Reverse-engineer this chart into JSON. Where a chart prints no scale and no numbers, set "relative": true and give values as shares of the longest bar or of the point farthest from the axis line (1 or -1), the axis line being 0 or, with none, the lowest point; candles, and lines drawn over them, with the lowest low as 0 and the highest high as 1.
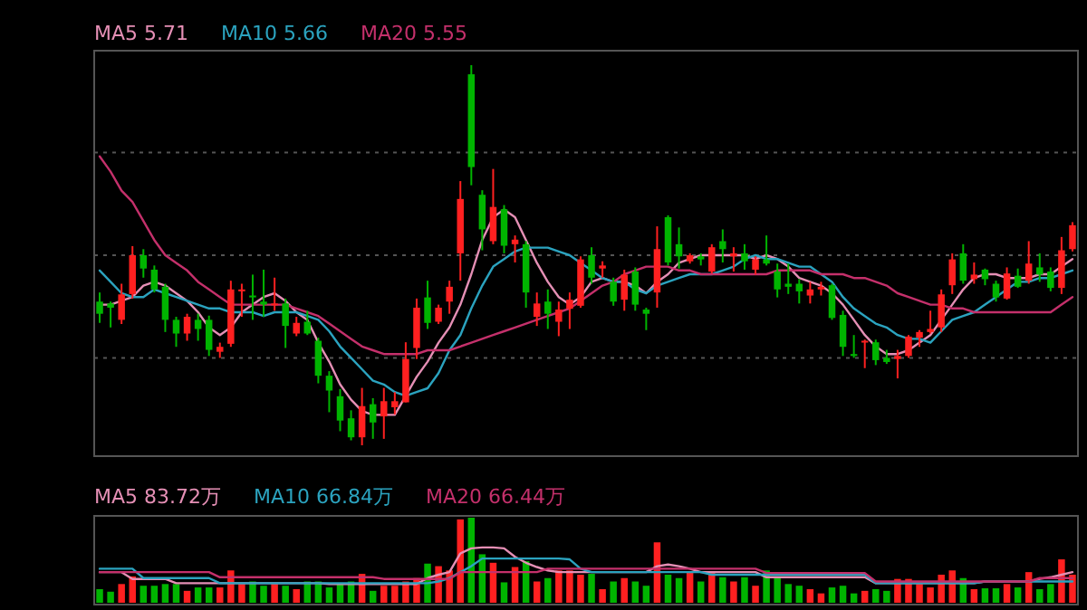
{
  "chart_data": [
    {
      "type": "candlestick",
      "relative": true,
      "legend": "top left",
      "categories": [
        null,
        null,
        null,
        null,
        null,
        null,
        null,
        null,
        null,
        null,
        null,
        null,
        null,
        null,
        null,
        null,
        null,
        null,
        null,
        null,
        null,
        null,
        null,
        null,
        null,
        null,
        null,
        null,
        null,
        null,
        null,
        null,
        null,
        null,
        null,
        null,
        null,
        null,
        null,
        null,
        null,
        null,
        null,
        null,
        null,
        null,
        null,
        null,
        null,
        null,
        null,
        null,
        null,
        null,
        null,
        null,
        null,
        null,
        null,
        null,
        null,
        null,
        null,
        null,
        null,
        null,
        null,
        null,
        null,
        null,
        null,
        null,
        null,
        null,
        null,
        null,
        null,
        null,
        null,
        null,
        null,
        null,
        null,
        null,
        null,
        null,
        null,
        null,
        null,
        null
      ],
      "ohlc": [
        [
          0.378,
          0.402,
          0.322,
          0.346
        ],
        [
          0.373,
          0.378,
          0.31,
          0.362
        ],
        [
          0.33,
          0.425,
          0.319,
          0.397
        ],
        [
          0.398,
          0.524,
          0.386,
          0.5
        ],
        [
          0.5,
          0.516,
          0.441,
          0.465
        ],
        [
          0.462,
          0.473,
          0.402,
          0.41
        ],
        [
          0.417,
          0.425,
          0.298,
          0.33
        ],
        [
          0.33,
          0.338,
          0.259,
          0.294
        ],
        [
          0.294,
          0.346,
          0.275,
          0.338
        ],
        [
          0.33,
          0.346,
          0.275,
          0.306
        ],
        [
          0.33,
          0.341,
          0.235,
          0.251
        ],
        [
          0.246,
          0.27,
          0.23,
          0.259
        ],
        [
          0.267,
          0.433,
          0.259,
          0.41
        ],
        [
          0.405,
          0.425,
          0.338,
          0.41
        ],
        [
          0.394,
          0.449,
          0.33,
          0.389
        ],
        [
          0.378,
          0.462,
          0.338,
          0.37
        ],
        [
          0.37,
          0.441,
          0.354,
          0.373
        ],
        [
          0.373,
          0.386,
          0.256,
          0.314
        ],
        [
          0.294,
          0.338,
          0.287,
          0.322
        ],
        [
          0.325,
          0.354,
          0.29,
          0.294
        ],
        [
          0.275,
          0.283,
          0.163,
          0.183
        ],
        [
          0.183,
          0.195,
          0.087,
          0.144
        ],
        [
          0.129,
          0.148,
          0.037,
          0.065
        ],
        [
          0.071,
          0.092,
          0.013,
          0.021
        ],
        [
          0.021,
          0.151,
          0.0,
          0.103
        ],
        [
          0.108,
          0.124,
          0.017,
          0.06
        ],
        [
          0.076,
          0.151,
          0.017,
          0.116
        ],
        [
          0.1,
          0.14,
          0.081,
          0.116
        ],
        [
          0.113,
          0.271,
          0.113,
          0.227
        ],
        [
          0.256,
          0.386,
          0.227,
          0.362
        ],
        [
          0.389,
          0.433,
          0.306,
          0.322
        ],
        [
          0.325,
          0.37,
          0.319,
          0.362
        ],
        [
          0.378,
          0.433,
          0.346,
          0.417
        ],
        [
          0.505,
          0.695,
          0.433,
          0.648
        ],
        [
          0.976,
          1.0,
          0.684,
          0.732
        ],
        [
          0.659,
          0.671,
          0.513,
          0.568
        ],
        [
          0.537,
          0.727,
          0.529,
          0.627
        ],
        [
          0.621,
          0.632,
          0.505,
          0.525
        ],
        [
          0.529,
          0.552,
          0.481,
          0.541
        ],
        [
          0.529,
          0.537,
          0.362,
          0.402
        ],
        [
          0.338,
          0.402,
          0.314,
          0.373
        ],
        [
          0.378,
          0.41,
          0.306,
          0.346
        ],
        [
          0.325,
          0.378,
          0.287,
          0.357
        ],
        [
          0.359,
          0.402,
          0.306,
          0.383
        ],
        [
          0.367,
          0.497,
          0.362,
          0.489
        ],
        [
          0.5,
          0.521,
          0.425,
          0.441
        ],
        [
          0.465,
          0.484,
          0.441,
          0.473
        ],
        [
          0.43,
          0.441,
          0.367,
          0.378
        ],
        [
          0.383,
          0.462,
          0.354,
          0.449
        ],
        [
          0.457,
          0.468,
          0.354,
          0.37
        ],
        [
          0.357,
          0.362,
          0.303,
          0.346
        ],
        [
          0.402,
          0.576,
          0.362,
          0.516
        ],
        [
          0.6,
          0.605,
          0.473,
          0.481
        ],
        [
          0.529,
          0.573,
          0.465,
          0.497
        ],
        [
          0.484,
          0.505,
          0.478,
          0.5
        ],
        [
          0.497,
          0.505,
          0.473,
          0.489
        ],
        [
          0.457,
          0.529,
          0.452,
          0.521
        ],
        [
          0.537,
          0.568,
          0.481,
          0.516
        ],
        [
          0.497,
          0.521,
          0.457,
          0.505
        ],
        [
          0.505,
          0.529,
          0.462,
          0.484
        ],
        [
          0.462,
          0.497,
          0.449,
          0.489
        ],
        [
          0.489,
          0.552,
          0.473,
          0.478
        ],
        [
          0.457,
          0.478,
          0.389,
          0.41
        ],
        [
          0.425,
          0.478,
          0.398,
          0.417
        ],
        [
          0.425,
          0.437,
          0.373,
          0.405
        ],
        [
          0.394,
          0.43,
          0.373,
          0.41
        ],
        [
          0.41,
          0.43,
          0.394,
          0.417
        ],
        [
          0.421,
          0.425,
          0.33,
          0.335
        ],
        [
          0.343,
          0.354,
          0.235,
          0.259
        ],
        [
          0.24,
          0.29,
          0.23,
          0.235
        ],
        [
          0.271,
          0.278,
          0.203,
          0.275
        ],
        [
          0.271,
          0.278,
          0.211,
          0.224
        ],
        [
          0.23,
          0.251,
          0.214,
          0.219
        ],
        [
          0.227,
          0.251,
          0.176,
          0.235
        ],
        [
          0.235,
          0.29,
          0.23,
          0.286
        ],
        [
          0.283,
          0.303,
          0.259,
          0.298
        ],
        [
          0.298,
          0.354,
          0.294,
          0.306
        ],
        [
          0.31,
          0.41,
          0.298,
          0.397
        ],
        [
          0.421,
          0.505,
          0.398,
          0.489
        ],
        [
          0.505,
          0.529,
          0.425,
          0.433
        ],
        [
          0.437,
          0.481,
          0.425,
          0.449
        ],
        [
          0.462,
          0.465,
          0.421,
          0.437
        ],
        [
          0.425,
          0.433,
          0.378,
          0.389
        ],
        [
          0.386,
          0.468,
          0.383,
          0.452
        ],
        [
          0.446,
          0.465,
          0.414,
          0.417
        ],
        [
          0.433,
          0.537,
          0.425,
          0.478
        ],
        [
          0.468,
          0.505,
          0.43,
          0.449
        ],
        [
          0.457,
          0.468,
          0.405,
          0.414
        ],
        [
          0.414,
          0.548,
          0.398,
          0.513
        ],
        [
          0.516,
          0.587,
          0.51,
          0.579
        ]
      ],
      "series": [
        {
          "type": "line",
          "name": "MA5 5.71",
          "color": "#e58fb5",
          "values": [
            0.37,
            0.37,
            0.38,
            0.39,
            0.42,
            0.43,
            0.42,
            0.4,
            0.38,
            0.35,
            0.31,
            0.29,
            0.31,
            0.35,
            0.37,
            0.39,
            0.4,
            0.38,
            0.35,
            0.33,
            0.27,
            0.22,
            0.16,
            0.12,
            0.09,
            0.08,
            0.08,
            0.08,
            0.13,
            0.18,
            0.22,
            0.27,
            0.31,
            0.37,
            0.45,
            0.54,
            0.6,
            0.62,
            0.6,
            0.54,
            0.48,
            0.43,
            0.39,
            0.37,
            0.39,
            0.43,
            0.44,
            0.43,
            0.43,
            0.42,
            0.4,
            0.43,
            0.45,
            0.48,
            0.49,
            0.5,
            0.5,
            0.5,
            0.5,
            0.5,
            0.49,
            0.5,
            0.49,
            0.47,
            0.44,
            0.43,
            0.42,
            0.4,
            0.37,
            0.33,
            0.29,
            0.26,
            0.24,
            0.24,
            0.25,
            0.27,
            0.29,
            0.33,
            0.37,
            0.41,
            0.44,
            0.45,
            0.45,
            0.44,
            0.44,
            0.44,
            0.45,
            0.45,
            0.47,
            0.49
          ]
        },
        {
          "type": "line",
          "name": "MA10 5.66",
          "color": "#2ba3bf",
          "values": [
            0.46,
            0.43,
            0.4,
            0.39,
            0.39,
            0.41,
            0.4,
            0.39,
            0.38,
            0.37,
            0.36,
            0.36,
            0.35,
            0.35,
            0.35,
            0.34,
            0.35,
            0.35,
            0.35,
            0.34,
            0.33,
            0.3,
            0.26,
            0.23,
            0.2,
            0.17,
            0.16,
            0.14,
            0.13,
            0.14,
            0.15,
            0.19,
            0.25,
            0.29,
            0.36,
            0.42,
            0.47,
            0.49,
            0.51,
            0.52,
            0.52,
            0.52,
            0.51,
            0.5,
            0.48,
            0.46,
            0.44,
            0.43,
            0.43,
            0.41,
            0.4,
            0.42,
            0.43,
            0.44,
            0.45,
            0.45,
            0.45,
            0.46,
            0.47,
            0.49,
            0.5,
            0.49,
            0.49,
            0.48,
            0.47,
            0.47,
            0.45,
            0.43,
            0.39,
            0.36,
            0.34,
            0.32,
            0.31,
            0.29,
            0.28,
            0.28,
            0.27,
            0.3,
            0.33,
            0.34,
            0.35,
            0.37,
            0.39,
            0.41,
            0.43,
            0.43,
            0.44,
            0.44,
            0.45,
            0.46
          ]
        },
        {
          "type": "line",
          "name": "MA20 5.55",
          "color": "#c4306b",
          "values": [
            0.76,
            0.72,
            0.67,
            0.64,
            0.59,
            0.54,
            0.5,
            0.48,
            0.46,
            0.43,
            0.41,
            0.39,
            0.37,
            0.37,
            0.37,
            0.37,
            0.37,
            0.37,
            0.36,
            0.35,
            0.34,
            0.32,
            0.3,
            0.28,
            0.26,
            0.25,
            0.24,
            0.24,
            0.24,
            0.24,
            0.25,
            0.25,
            0.25,
            0.26,
            0.27,
            0.28,
            0.29,
            0.3,
            0.31,
            0.32,
            0.33,
            0.34,
            0.35,
            0.36,
            0.38,
            0.4,
            0.42,
            0.43,
            0.45,
            0.46,
            0.47,
            0.47,
            0.47,
            0.46,
            0.46,
            0.45,
            0.45,
            0.45,
            0.45,
            0.45,
            0.45,
            0.45,
            0.46,
            0.46,
            0.46,
            0.46,
            0.45,
            0.45,
            0.45,
            0.44,
            0.44,
            0.43,
            0.42,
            0.4,
            0.39,
            0.38,
            0.37,
            0.37,
            0.36,
            0.36,
            0.35,
            0.35,
            0.35,
            0.35,
            0.35,
            0.35,
            0.35,
            0.35,
            0.37,
            0.39
          ]
        }
      ],
      "ref_lines": [
        {
          "axis": "y",
          "value": 0.77,
          "color": "#555555",
          "line_style": "dotted"
        },
        {
          "axis": "y",
          "value": 0.5,
          "color": "#555555",
          "line_style": "dotted"
        },
        {
          "axis": "y",
          "value": 0.23,
          "color": "#555555",
          "line_style": "dotted"
        }
      ]
    },
    {
      "type": "bar",
      "relative": true,
      "legend": "top left",
      "categories": [
        null,
        null,
        null,
        null,
        null,
        null,
        null,
        null,
        null,
        null,
        null,
        null,
        null,
        null,
        null,
        null,
        null,
        null,
        null,
        null,
        null,
        null,
        null,
        null,
        null,
        null,
        null,
        null,
        null,
        null,
        null,
        null,
        null,
        null,
        null,
        null,
        null,
        null,
        null,
        null,
        null,
        null,
        null,
        null,
        null,
        null,
        null,
        null,
        null,
        null,
        null,
        null,
        null,
        null,
        null,
        null,
        null,
        null,
        null,
        null,
        null,
        null,
        null,
        null,
        null,
        null,
        null,
        null,
        null,
        null,
        null,
        null,
        null,
        null,
        null,
        null,
        null,
        null,
        null,
        null,
        null,
        null,
        null,
        null,
        null,
        null,
        null,
        null,
        null,
        null
      ],
      "series": [
        {
          "type": "bar",
          "values": [
            0.16,
            0.13,
            0.22,
            0.31,
            0.2,
            0.2,
            0.22,
            0.22,
            0.14,
            0.18,
            0.18,
            0.18,
            0.38,
            0.22,
            0.25,
            0.2,
            0.22,
            0.2,
            0.16,
            0.25,
            0.25,
            0.18,
            0.23,
            0.25,
            0.34,
            0.14,
            0.2,
            0.2,
            0.25,
            0.29,
            0.46,
            0.43,
            0.38,
            0.98,
            1.0,
            0.57,
            0.47,
            0.24,
            0.42,
            0.49,
            0.25,
            0.29,
            0.38,
            0.38,
            0.33,
            0.34,
            0.16,
            0.25,
            0.29,
            0.25,
            0.2,
            0.71,
            0.33,
            0.29,
            0.36,
            0.25,
            0.36,
            0.3,
            0.25,
            0.3,
            0.2,
            0.38,
            0.29,
            0.22,
            0.2,
            0.16,
            0.11,
            0.18,
            0.2,
            0.11,
            0.14,
            0.16,
            0.14,
            0.28,
            0.28,
            0.22,
            0.18,
            0.33,
            0.38,
            0.29,
            0.16,
            0.17,
            0.17,
            0.22,
            0.18,
            0.36,
            0.16,
            0.22,
            0.51,
            0.33
          ],
          "colors": [
            "#00b400",
            "#00b400",
            "#ff2020",
            "#ff2020",
            "#00b400",
            "#00b400",
            "#00b400",
            "#00b400",
            "#ff2020",
            "#00b400",
            "#00b400",
            "#ff2020",
            "#ff2020",
            "#ff2020",
            "#00b400",
            "#00b400",
            "#ff2020",
            "#00b400",
            "#ff2020",
            "#00b400",
            "#00b400",
            "#00b400",
            "#00b400",
            "#00b400",
            "#ff2020",
            "#00b400",
            "#ff2020",
            "#ff2020",
            "#ff2020",
            "#ff2020",
            "#00b400",
            "#ff2020",
            "#ff2020",
            "#ff2020",
            "#00b400",
            "#00b400",
            "#ff2020",
            "#00b400",
            "#ff2020",
            "#00b400",
            "#ff2020",
            "#00b400",
            "#ff2020",
            "#ff2020",
            "#ff2020",
            "#00b400",
            "#ff2020",
            "#00b400",
            "#ff2020",
            "#00b400",
            "#00b400",
            "#ff2020",
            "#00b400",
            "#00b400",
            "#ff2020",
            "#00b400",
            "#ff2020",
            "#00b400",
            "#ff2020",
            "#00b400",
            "#ff2020",
            "#00b400",
            "#00b400",
            "#00b400",
            "#00b400",
            "#ff2020",
            "#ff2020",
            "#00b400",
            "#00b400",
            "#00b400",
            "#ff2020",
            "#00b400",
            "#00b400",
            "#ff2020",
            "#ff2020",
            "#ff2020",
            "#ff2020",
            "#ff2020",
            "#ff2020",
            "#00b400",
            "#ff2020",
            "#00b400",
            "#00b400",
            "#ff2020",
            "#00b400",
            "#ff2020",
            "#00b400",
            "#00b400",
            "#ff2020",
            "#ff2020"
          ]
        },
        {
          "type": "line",
          "name": "MA5 83.72万",
          "color": "#e58fb5",
          "values": [
            0.36,
            0.36,
            0.36,
            0.28,
            0.28,
            0.28,
            0.28,
            0.23,
            0.23,
            0.23,
            0.23,
            0.23,
            0.23,
            0.23,
            0.23,
            0.23,
            0.23,
            0.23,
            0.23,
            0.23,
            0.23,
            0.22,
            0.22,
            0.22,
            0.22,
            0.22,
            0.22,
            0.22,
            0.22,
            0.22,
            0.29,
            0.33,
            0.36,
            0.58,
            0.64,
            0.65,
            0.65,
            0.64,
            0.54,
            0.47,
            0.42,
            0.38,
            0.36,
            0.36,
            0.36,
            0.36,
            0.36,
            0.36,
            0.36,
            0.36,
            0.36,
            0.43,
            0.45,
            0.43,
            0.4,
            0.36,
            0.36,
            0.36,
            0.36,
            0.36,
            0.36,
            0.3,
            0.3,
            0.3,
            0.3,
            0.3,
            0.3,
            0.3,
            0.3,
            0.3,
            0.3,
            0.23,
            0.23,
            0.23,
            0.23,
            0.23,
            0.23,
            0.23,
            0.23,
            0.23,
            0.23,
            0.25,
            0.25,
            0.25,
            0.25,
            0.25,
            0.28,
            0.3,
            0.33,
            0.36
          ]
        },
        {
          "type": "line",
          "name": "MA10 66.84万",
          "color": "#2ba3bf",
          "values": [
            0.4,
            0.4,
            0.4,
            0.4,
            0.29,
            0.29,
            0.29,
            0.29,
            0.29,
            0.29,
            0.29,
            0.23,
            0.23,
            0.23,
            0.23,
            0.23,
            0.23,
            0.23,
            0.23,
            0.23,
            0.23,
            0.23,
            0.23,
            0.23,
            0.23,
            0.23,
            0.23,
            0.23,
            0.23,
            0.23,
            0.23,
            0.25,
            0.29,
            0.36,
            0.43,
            0.52,
            0.52,
            0.52,
            0.52,
            0.52,
            0.52,
            0.52,
            0.52,
            0.51,
            0.4,
            0.36,
            0.36,
            0.36,
            0.36,
            0.36,
            0.36,
            0.36,
            0.36,
            0.36,
            0.36,
            0.36,
            0.33,
            0.33,
            0.33,
            0.33,
            0.33,
            0.33,
            0.33,
            0.33,
            0.33,
            0.33,
            0.33,
            0.33,
            0.33,
            0.33,
            0.33,
            0.23,
            0.23,
            0.23,
            0.23,
            0.23,
            0.23,
            0.23,
            0.23,
            0.23,
            0.23,
            0.25,
            0.25,
            0.25,
            0.25,
            0.25,
            0.25,
            0.25,
            0.25,
            0.25
          ]
        },
        {
          "type": "line",
          "name": "MA20 66.44万",
          "color": "#c4306b",
          "values": [
            0.36,
            0.36,
            0.36,
            0.36,
            0.36,
            0.36,
            0.36,
            0.36,
            0.36,
            0.36,
            0.36,
            0.3,
            0.3,
            0.3,
            0.3,
            0.3,
            0.3,
            0.3,
            0.3,
            0.3,
            0.3,
            0.3,
            0.3,
            0.3,
            0.3,
            0.3,
            0.28,
            0.28,
            0.28,
            0.28,
            0.28,
            0.28,
            0.28,
            0.36,
            0.36,
            0.36,
            0.36,
            0.36,
            0.36,
            0.36,
            0.36,
            0.4,
            0.4,
            0.4,
            0.4,
            0.4,
            0.4,
            0.4,
            0.4,
            0.4,
            0.4,
            0.4,
            0.4,
            0.4,
            0.4,
            0.4,
            0.4,
            0.4,
            0.4,
            0.4,
            0.4,
            0.35,
            0.35,
            0.35,
            0.35,
            0.35,
            0.35,
            0.35,
            0.35,
            0.35,
            0.35,
            0.25,
            0.25,
            0.25,
            0.25,
            0.25,
            0.25,
            0.25,
            0.25,
            0.25,
            0.25,
            0.25,
            0.25,
            0.25,
            0.25,
            0.25,
            0.29,
            0.29,
            0.29,
            0.29
          ]
        }
      ]
    }
  ]
}
